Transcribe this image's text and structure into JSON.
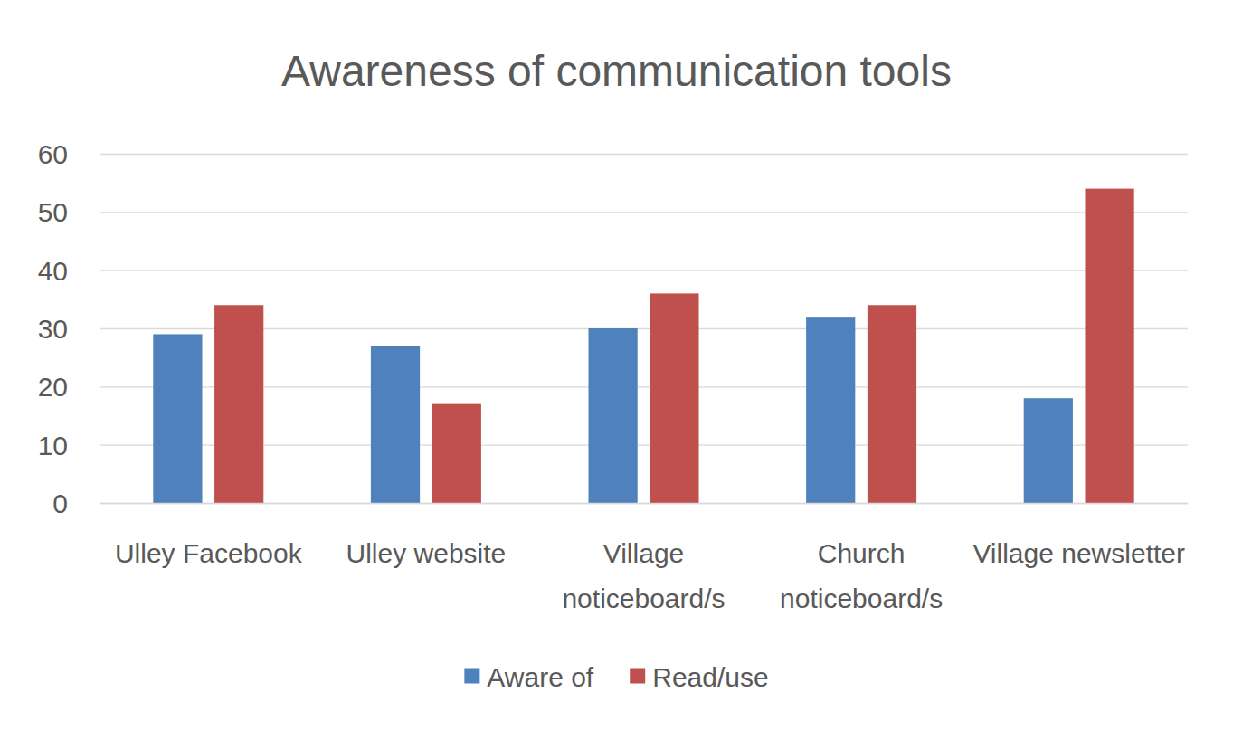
{
  "chart_data": {
    "type": "bar",
    "title": "Awareness of communication tools",
    "categories": [
      "Ulley Facebook",
      "Ulley website",
      "Village noticeboard/s",
      "Church noticeboard/s",
      "Village newsletter"
    ],
    "series": [
      {
        "name": "Aware of",
        "color": "#4f81bd",
        "values": [
          29,
          27,
          30,
          32,
          18
        ]
      },
      {
        "name": "Read/use",
        "color": "#c0504d",
        "values": [
          34,
          17,
          36,
          34,
          54
        ]
      }
    ],
    "ylim": [
      0,
      60
    ],
    "yticks": [
      0,
      10,
      20,
      30,
      40,
      50,
      60
    ],
    "grid": true,
    "legend": "bottom"
  }
}
